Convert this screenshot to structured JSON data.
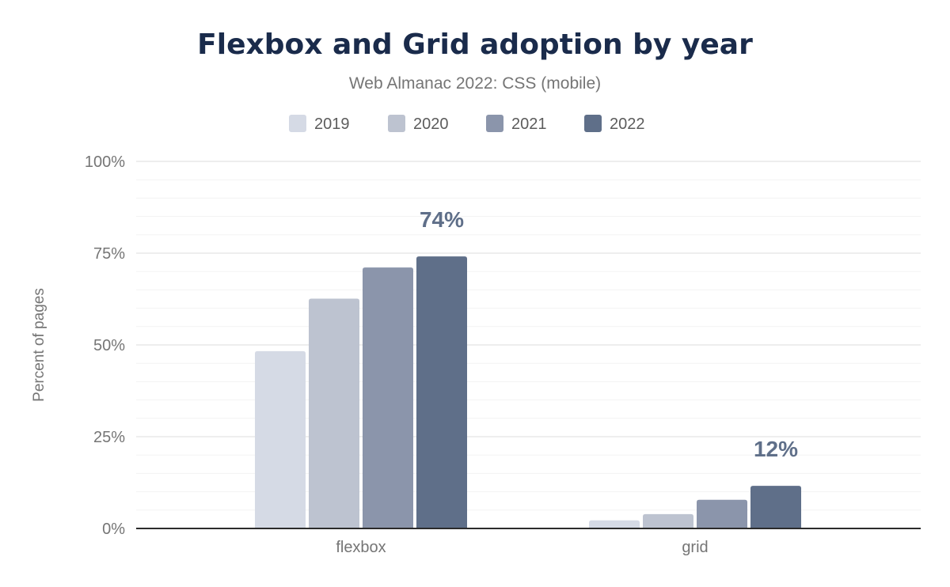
{
  "chart_data": {
    "type": "bar",
    "title": "Flexbox and Grid adoption by year",
    "subtitle": "Web Almanac 2022: CSS (mobile)",
    "xlabel": "",
    "ylabel": "Percent of pages",
    "categories": [
      "flexbox",
      "grid"
    ],
    "series": [
      {
        "name": "2019",
        "color": "#d5dae5",
        "values": [
          48.3,
          2.2
        ]
      },
      {
        "name": "2020",
        "color": "#bdc3d0",
        "values": [
          62.6,
          3.9
        ]
      },
      {
        "name": "2021",
        "color": "#8b95ab",
        "values": [
          71.1,
          7.8
        ]
      },
      {
        "name": "2022",
        "color": "#5f6f89",
        "values": [
          74.1,
          11.6
        ]
      }
    ],
    "data_labels": [
      {
        "category": "flexbox",
        "series": "2022",
        "text": "74%"
      },
      {
        "category": "grid",
        "series": "2022",
        "text": "12%"
      }
    ],
    "ylim": [
      0,
      100
    ],
    "yticks": [
      "0%",
      "25%",
      "50%",
      "75%",
      "100%"
    ],
    "grid": true,
    "legend": "top-center"
  }
}
